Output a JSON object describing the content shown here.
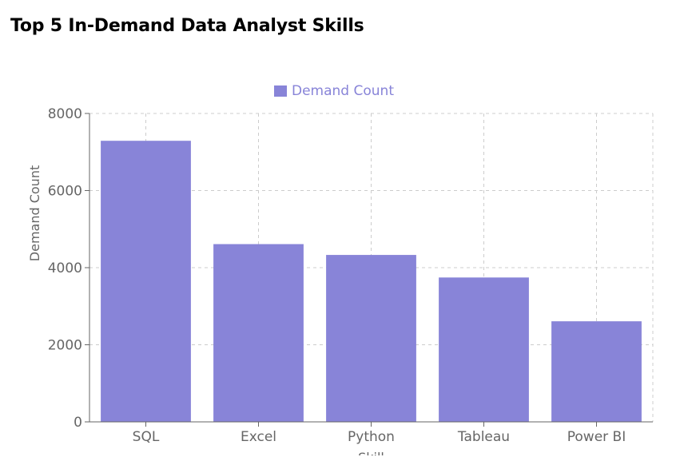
{
  "page": {
    "title": "Top 5 In-Demand Data Analyst Skills"
  },
  "colors": {
    "bar": "#8884d8",
    "grid": "#cccccc",
    "axis": "#666666",
    "title": "#000000"
  },
  "chart_data": {
    "type": "bar",
    "title": "Top 5 In-Demand Data Analyst Skills",
    "categories": [
      "SQL",
      "Excel",
      "Python",
      "Tableau",
      "Power BI"
    ],
    "series": [
      {
        "name": "Demand Count",
        "values": [
          7291,
          4611,
          4330,
          3745,
          2609
        ]
      }
    ],
    "xlabel": "Skill",
    "ylabel": "Demand Count",
    "ylim": [
      0,
      8000
    ],
    "yticks": [
      0,
      2000,
      4000,
      6000,
      8000
    ],
    "grid": true,
    "grid_style": "dashed",
    "legend_position": "top-center"
  }
}
